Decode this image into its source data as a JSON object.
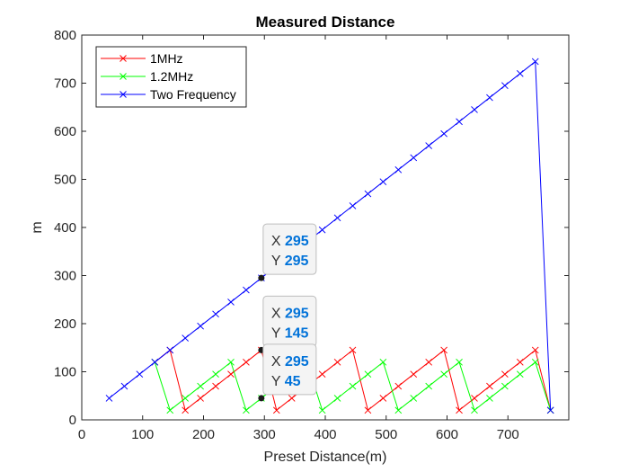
{
  "chart_data": {
    "type": "line",
    "title": "Measured Distance",
    "xlabel": "Preset Distance(m)",
    "ylabel": "m",
    "xlim": [
      0,
      800
    ],
    "ylim": [
      0,
      800
    ],
    "xticks": [
      0,
      100,
      200,
      300,
      400,
      500,
      600,
      700
    ],
    "yticks": [
      0,
      100,
      200,
      300,
      400,
      500,
      600,
      700,
      800
    ],
    "grid": false,
    "legend_position": "top-left",
    "x": [
      45,
      70,
      95,
      120,
      145,
      170,
      195,
      220,
      245,
      270,
      295,
      320,
      345,
      370,
      395,
      420,
      445,
      470,
      495,
      520,
      545,
      570,
      595,
      620,
      645,
      670,
      695,
      720,
      745,
      770
    ],
    "series": [
      {
        "name": "1MHz",
        "color": "#ff0000",
        "x": [
          120,
          145,
          170,
          195,
          220,
          245,
          270,
          295,
          320,
          345,
          370,
          395,
          420,
          445,
          470,
          495,
          520,
          545,
          570,
          595,
          620,
          645,
          670,
          695,
          720,
          745,
          770
        ],
        "values": [
          120,
          145,
          20,
          45,
          70,
          95,
          120,
          145,
          20,
          45,
          70,
          95,
          120,
          145,
          20,
          45,
          70,
          95,
          120,
          145,
          20,
          45,
          70,
          95,
          120,
          145,
          20
        ]
      },
      {
        "name": "1.2MHz",
        "color": "#00ff00",
        "x": [
          120,
          145,
          170,
          195,
          220,
          245,
          270,
          295,
          320,
          345,
          370,
          395,
          420,
          445,
          470,
          495,
          520,
          545,
          570,
          595,
          620,
          645,
          670,
          695,
          720,
          745,
          770
        ],
        "values": [
          120,
          20,
          45,
          70,
          95,
          120,
          20,
          45,
          70,
          95,
          120,
          20,
          45,
          70,
          95,
          120,
          20,
          45,
          70,
          95,
          120,
          20,
          45,
          70,
          95,
          120,
          20
        ]
      },
      {
        "name": "Two Frequency",
        "color": "#0000ff",
        "x": [
          45,
          70,
          95,
          120,
          145,
          170,
          195,
          220,
          245,
          270,
          295,
          320,
          345,
          370,
          395,
          420,
          445,
          470,
          495,
          520,
          545,
          570,
          595,
          620,
          645,
          670,
          695,
          720,
          745,
          770
        ],
        "values": [
          45,
          70,
          95,
          120,
          145,
          170,
          195,
          220,
          245,
          270,
          295,
          320,
          345,
          370,
          395,
          420,
          445,
          470,
          495,
          520,
          545,
          570,
          595,
          620,
          645,
          670,
          695,
          720,
          745,
          20
        ]
      }
    ],
    "datatips": [
      {
        "x": 295,
        "y": 295,
        "x_label": "X",
        "y_label": "Y",
        "x_text": "295",
        "y_text": "295"
      },
      {
        "x": 295,
        "y": 145,
        "x_label": "X",
        "y_label": "Y",
        "x_text": "295",
        "y_text": "145"
      },
      {
        "x": 295,
        "y": 45,
        "x_label": "X",
        "y_label": "Y",
        "x_text": "295",
        "y_text": "45"
      }
    ]
  }
}
